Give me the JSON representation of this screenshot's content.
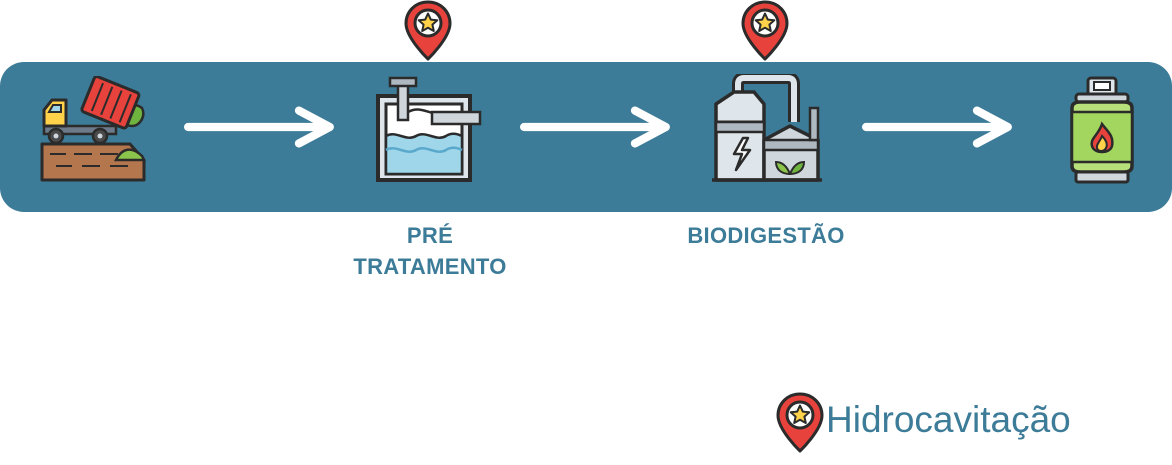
{
  "diagram": {
    "steps": [
      {
        "icon": "dump-truck-waste-icon",
        "label": ""
      },
      {
        "icon": "pretreatment-tank-icon",
        "label_line1": "PRÉ",
        "label_line2": "TRATAMENTO"
      },
      {
        "icon": "biodigester-plant-icon",
        "label": "BIODIGESTÃO"
      },
      {
        "icon": "biogas-cylinder-icon",
        "label": ""
      }
    ],
    "markers": [
      "star-pin-icon",
      "star-pin-icon"
    ]
  },
  "legend": {
    "icon": "star-pin-icon",
    "label": "Hidrocavitação"
  },
  "colors": {
    "band": "#3d7c98",
    "label": "#3d7c98",
    "pin": "#e8423c",
    "star": "#ffd24a"
  }
}
